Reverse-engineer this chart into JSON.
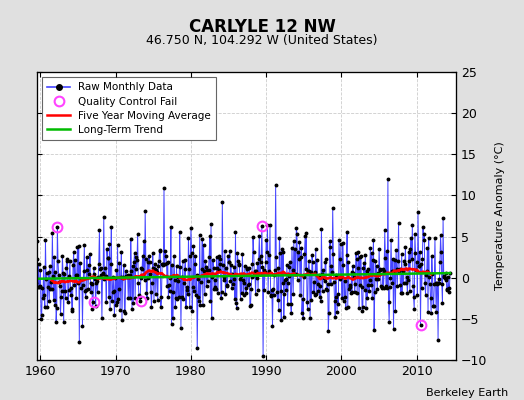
{
  "title": "CARLYLE 12 NW",
  "subtitle": "46.750 N, 104.292 W (United States)",
  "ylabel": "Temperature Anomaly (°C)",
  "attribution": "Berkeley Earth",
  "year_start": 1959.0,
  "year_end": 2014.5,
  "ylim": [
    -10,
    25
  ],
  "yticks": [
    -10,
    -5,
    0,
    5,
    10,
    15,
    20,
    25
  ],
  "xticks": [
    1960,
    1970,
    1980,
    1990,
    2000,
    2010
  ],
  "background_color": "#e0e0e0",
  "plot_bg_color": "#ffffff",
  "raw_line_color": "#4444ff",
  "raw_marker_color": "#000000",
  "ma_color": "#ff0000",
  "trend_color": "#00bb00",
  "qc_color": "#ff44ff",
  "seed": 42,
  "qc_points_t": [
    1962.25,
    1967.08,
    1973.33,
    1989.42,
    2010.58
  ],
  "qc_points_v": [
    6.2,
    -3.0,
    -2.8,
    6.3,
    -5.7
  ]
}
